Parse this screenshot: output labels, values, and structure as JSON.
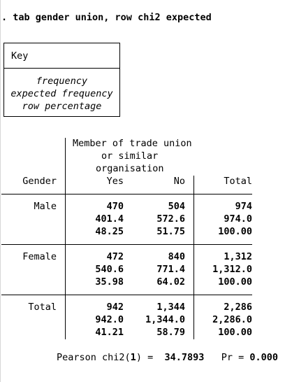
{
  "command": ". tab gender union, row chi2 expected",
  "key": {
    "title": "Key",
    "lines": [
      "frequency",
      "expected frequency",
      "row percentage"
    ]
  },
  "table": {
    "column_var_label": [
      "Member of trade union",
      "or similar",
      "organisation"
    ],
    "row_var": "Gender",
    "columns": [
      "Yes",
      "No",
      "Total"
    ],
    "rows": [
      {
        "label": "Male",
        "frequency": [
          "470",
          "504",
          "974"
        ],
        "expected": [
          "401.4",
          "572.6",
          "974.0"
        ],
        "row_pct": [
          "48.25",
          "51.75",
          "100.00"
        ]
      },
      {
        "label": "Female",
        "frequency": [
          "472",
          "840",
          "1,312"
        ],
        "expected": [
          "540.6",
          "771.4",
          "1,312.0"
        ],
        "row_pct": [
          "35.98",
          "64.02",
          "100.00"
        ]
      },
      {
        "label": "Total",
        "frequency": [
          "942",
          "1,344",
          "2,286"
        ],
        "expected": [
          "942.0",
          "1,344.0",
          "2,286.0"
        ],
        "row_pct": [
          "41.21",
          "58.79",
          "100.00"
        ]
      }
    ]
  },
  "stats": {
    "label_pre": "Pearson chi2(",
    "df": "1",
    "label_post": ") =",
    "chi2": "34.7893",
    "pr_label": "Pr =",
    "pr": "0.000"
  }
}
